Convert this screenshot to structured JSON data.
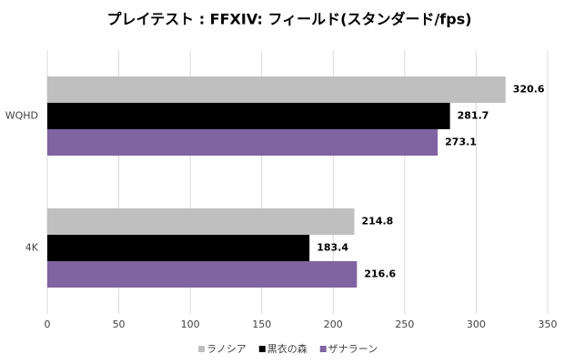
{
  "chart_data": {
    "type": "hbar",
    "title": "プレイテスト : FFXIV: フィールド(スタンダード/fps)",
    "categories": [
      "WQHD",
      "4K"
    ],
    "series": [
      {
        "name": "ラノシア",
        "color": "#bfbfbf",
        "values": [
          320.6,
          214.8
        ]
      },
      {
        "name": "黒衣の森",
        "color": "#000000",
        "values": [
          281.7,
          183.4
        ]
      },
      {
        "name": "ザナラーン",
        "color": "#8064a2",
        "values": [
          273.1,
          216.6
        ]
      }
    ],
    "xlim": [
      0,
      350
    ],
    "xticks": [
      0,
      50,
      100,
      150,
      200,
      250,
      300,
      350
    ],
    "grid": true
  }
}
